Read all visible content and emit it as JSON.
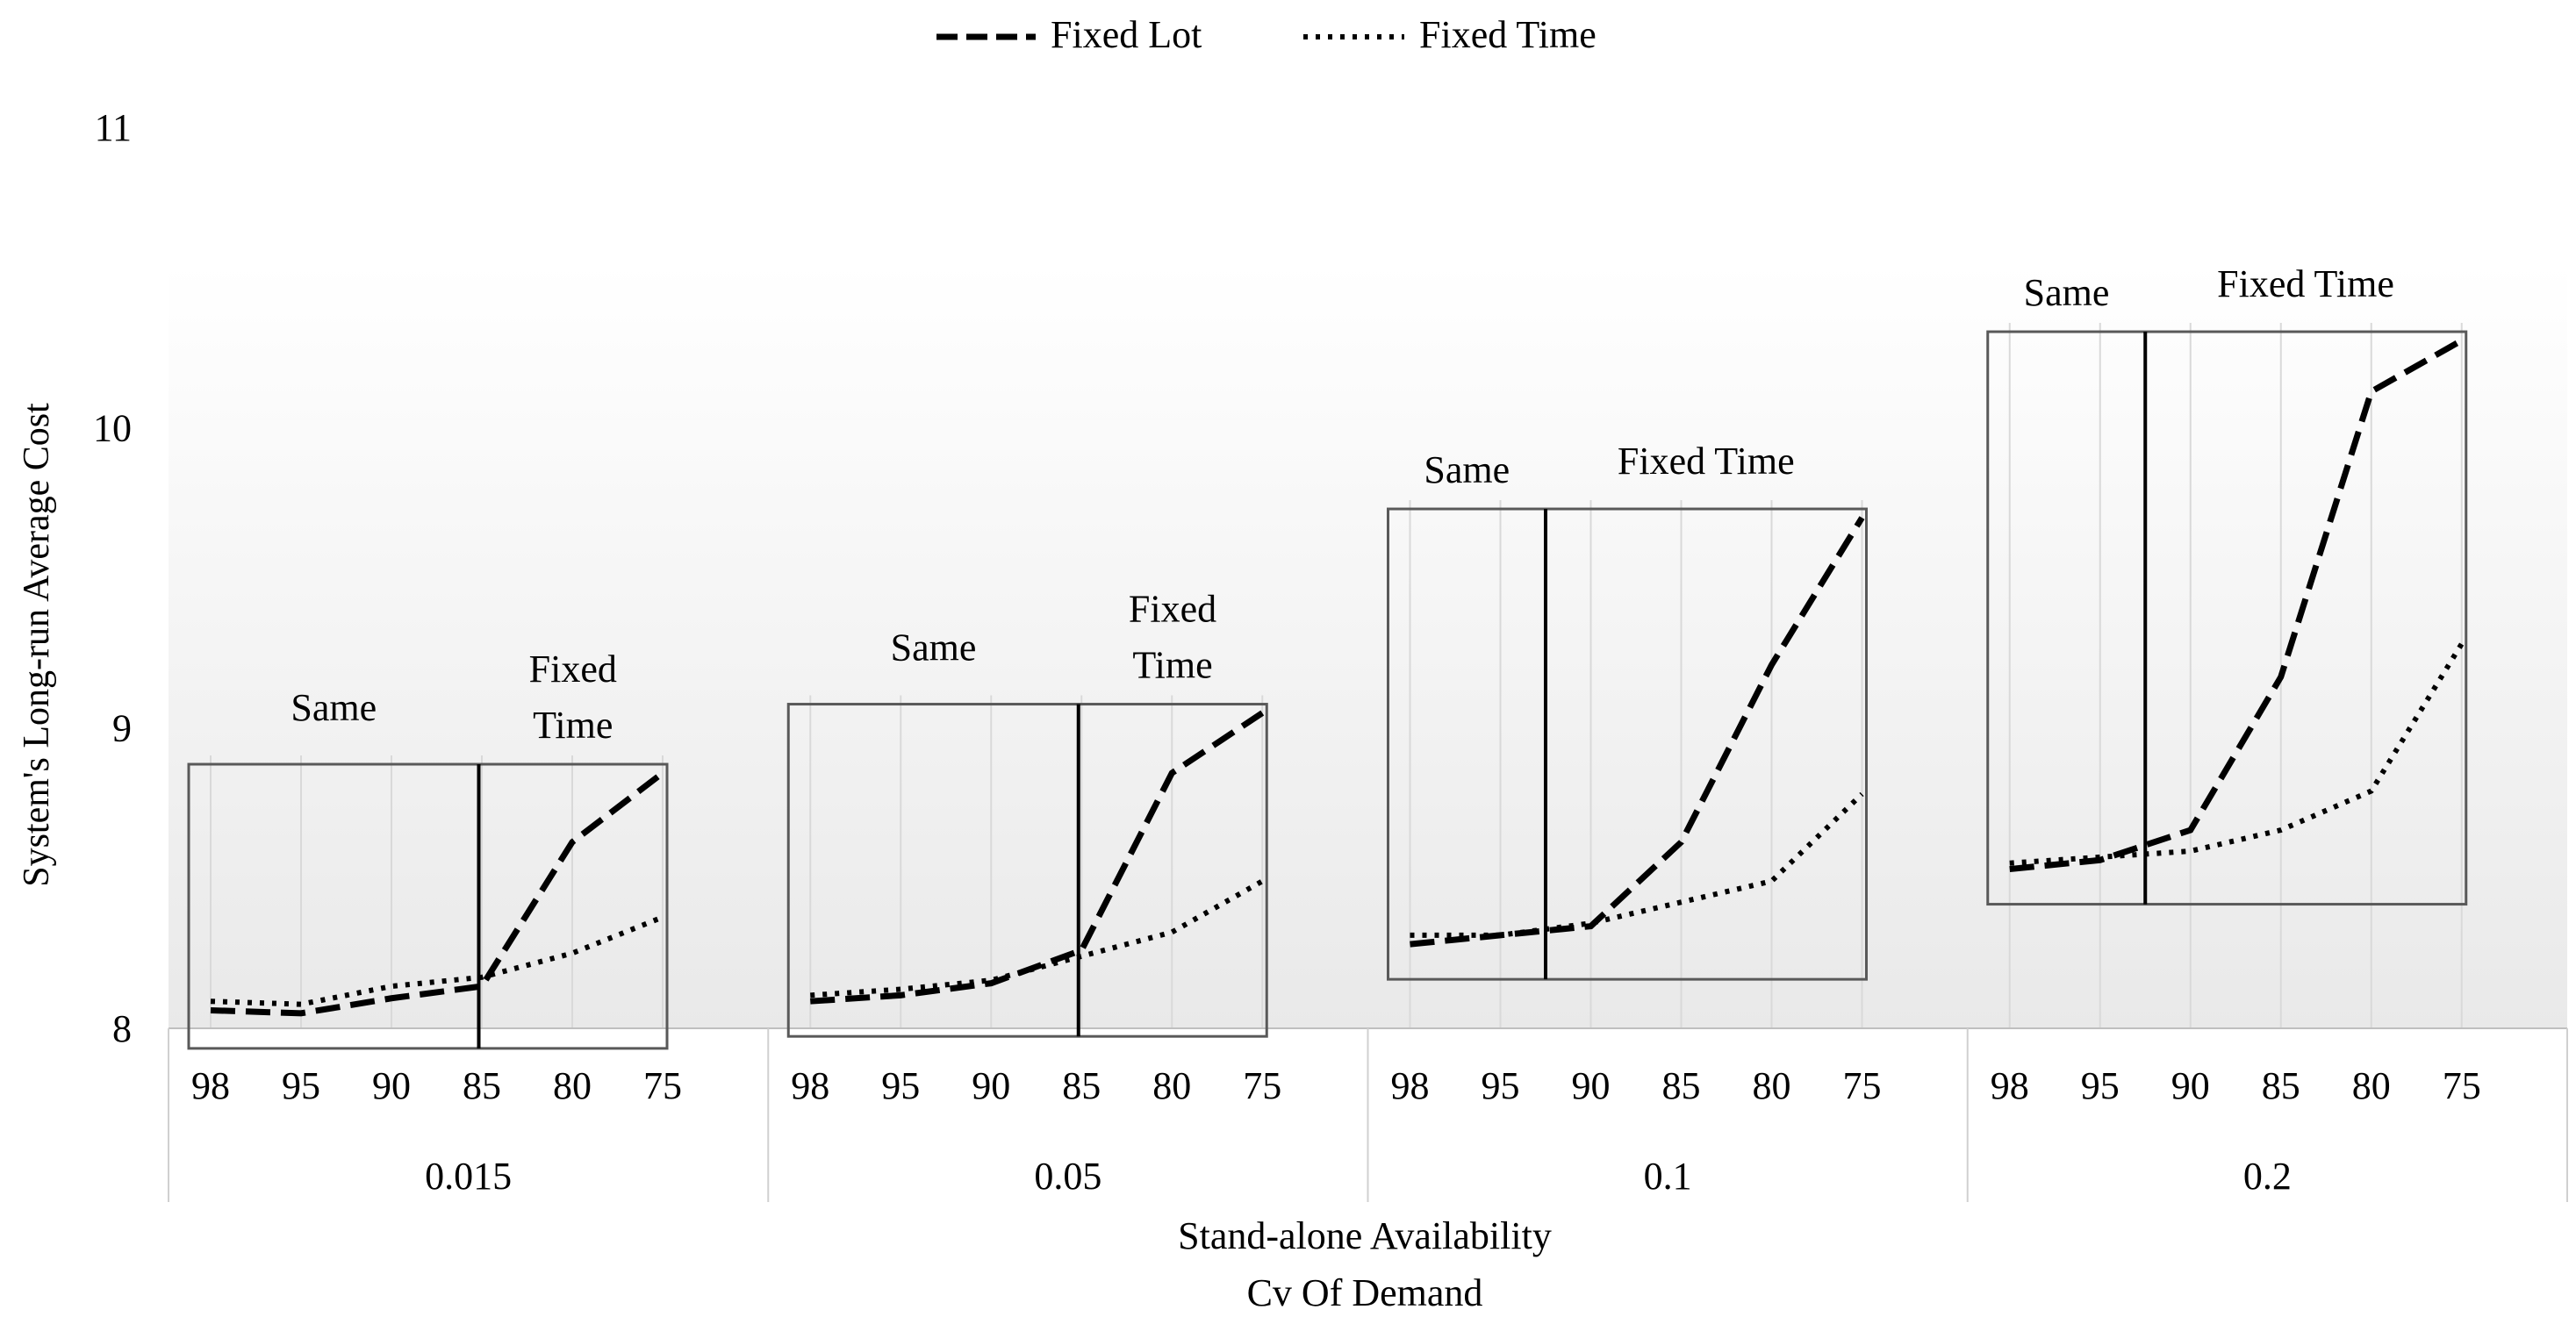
{
  "chart_data": {
    "type": "line",
    "ylabel": "System's Long-run Average Cost",
    "xlabel_lines": [
      "Stand-alone Availability",
      "Cv Of Demand"
    ],
    "ylim": [
      8,
      11
    ],
    "yticks": [
      8,
      9,
      10,
      11
    ],
    "grid": true,
    "legend_position": "top-center",
    "groups": [
      {
        "label": "0.015",
        "categories": [
          "98",
          "95",
          "90",
          "85",
          "80",
          "75"
        ],
        "box_annotation": {
          "left_label": "Same",
          "right_label_lines": [
            "Fixed",
            "Time"
          ],
          "divider_after": "90"
        },
        "series": [
          {
            "name": "Fixed Lot",
            "values": [
              8.06,
              8.05,
              8.1,
              8.14,
              8.62,
              8.85
            ]
          },
          {
            "name": "Fixed Time",
            "values": [
              8.09,
              8.08,
              8.14,
              8.17,
              8.25,
              8.37
            ]
          }
        ]
      },
      {
        "label": "0.05",
        "categories": [
          "98",
          "95",
          "90",
          "85",
          "80",
          "75"
        ],
        "box_annotation": {
          "left_label": "Same",
          "right_label_lines": [
            "Fixed",
            "Time"
          ],
          "divider_after": "90"
        },
        "series": [
          {
            "name": "Fixed Lot",
            "values": [
              8.09,
              8.11,
              8.15,
              8.26,
              8.85,
              9.05
            ]
          },
          {
            "name": "Fixed Time",
            "values": [
              8.11,
              8.13,
              8.16,
              8.24,
              8.32,
              8.49
            ]
          }
        ]
      },
      {
        "label": "0.1",
        "categories": [
          "98",
          "95",
          "90",
          "85",
          "80",
          "75"
        ],
        "box_annotation": {
          "left_label": "Same",
          "right_label_lines": [
            "Fixed Time"
          ],
          "divider_after": "95"
        },
        "series": [
          {
            "name": "Fixed Lot",
            "values": [
              8.28,
              8.31,
              8.34,
              8.62,
              9.21,
              9.7
            ]
          },
          {
            "name": "Fixed Time",
            "values": [
              8.31,
              8.31,
              8.35,
              8.42,
              8.49,
              8.78
            ]
          }
        ]
      },
      {
        "label": "0.2",
        "categories": [
          "98",
          "95",
          "90",
          "85",
          "80",
          "75"
        ],
        "box_annotation": {
          "left_label": "Same",
          "right_label_lines": [
            "Fixed Time"
          ],
          "divider_after": "95"
        },
        "series": [
          {
            "name": "Fixed Lot",
            "values": [
              8.53,
              8.56,
              8.66,
              9.17,
              10.12,
              10.29
            ]
          },
          {
            "name": "Fixed Time",
            "values": [
              8.55,
              8.57,
              8.59,
              8.66,
              8.79,
              9.28
            ]
          }
        ]
      }
    ],
    "legend": [
      {
        "name": "Fixed Lot",
        "style": "dashed"
      },
      {
        "name": "Fixed Time",
        "style": "dotted"
      }
    ],
    "colors": {
      "line": "#000000",
      "grid": "#d9d9d9",
      "box": "#595959",
      "background_top": "#ffffff",
      "background_bottom": "#e9e9e9"
    }
  }
}
